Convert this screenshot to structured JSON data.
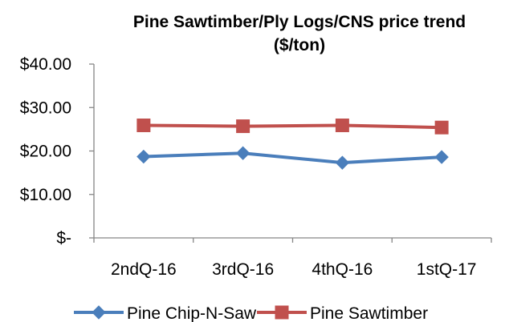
{
  "chart_data": {
    "type": "line",
    "title_lines": [
      "Pine Sawtimber/Ply Logs/CNS price trend",
      "($/ton)"
    ],
    "categories": [
      "2ndQ-16",
      "3rdQ-16",
      "4thQ-16",
      "1stQ-17"
    ],
    "ylim": [
      0,
      40
    ],
    "yticks": [
      0,
      10,
      20,
      30,
      40
    ],
    "ytick_labels": [
      "$-",
      "$10.00",
      "$20.00",
      "$30.00",
      "$40.00"
    ],
    "grid": false,
    "legend_position": "bottom",
    "series": [
      {
        "name": "Pine Chip-N-Saw",
        "values": [
          18.7,
          19.5,
          17.3,
          18.6
        ],
        "color": "#4a7ebb",
        "marker": "diamond"
      },
      {
        "name": "Pine Sawtimber",
        "values": [
          25.9,
          25.7,
          25.9,
          25.4
        ],
        "color": "#c0504d",
        "marker": "square"
      }
    ]
  }
}
